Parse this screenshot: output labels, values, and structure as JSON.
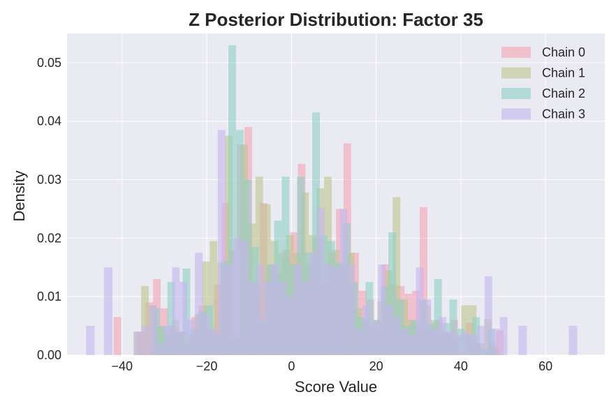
{
  "chart_data": {
    "type": "histogram",
    "title": "Z Posterior Distribution: Factor 35",
    "xlabel": "Score Value",
    "ylabel": "Density",
    "xlim": [
      -53,
      74
    ],
    "ylim": [
      0,
      0.055
    ],
    "x_ticks": [
      -40,
      -20,
      0,
      20,
      40,
      60
    ],
    "x_tick_labels": [
      "−40",
      "−20",
      "0",
      "20",
      "40",
      "60"
    ],
    "y_ticks": [
      0.0,
      0.01,
      0.02,
      0.03,
      0.04,
      0.05
    ],
    "y_tick_labels": [
      "0.00",
      "0.01",
      "0.02",
      "0.03",
      "0.04",
      "0.05"
    ],
    "grid": true,
    "legend_position": "top-right",
    "series": [
      {
        "name": "Chain 0",
        "color": "#f4a3b4",
        "bins": [
          {
            "x0": -42,
            "x1": -40.2,
            "y": 0.0065
          },
          {
            "x0": -36.5,
            "x1": -34.5,
            "y": 0.004
          },
          {
            "x0": -34.5,
            "x1": -32.7,
            "y": 0.009
          },
          {
            "x0": -32.7,
            "x1": -30.9,
            "y": 0.013
          },
          {
            "x0": -30.9,
            "x1": -29.1,
            "y": 0.008
          },
          {
            "x0": -29.1,
            "x1": -27.3,
            "y": 0.005
          },
          {
            "x0": -27.3,
            "x1": -25.5,
            "y": 0.004
          },
          {
            "x0": -25.5,
            "x1": -23.7,
            "y": 0.002
          },
          {
            "x0": -23.7,
            "x1": -21.9,
            "y": 0.0065
          },
          {
            "x0": -21.9,
            "x1": -20.1,
            "y": 0.0085
          },
          {
            "x0": -20.1,
            "x1": -18.3,
            "y": 0.0045
          },
          {
            "x0": -18.3,
            "x1": -16.5,
            "y": 0.012
          },
          {
            "x0": -16.5,
            "x1": -14.7,
            "y": 0.026
          },
          {
            "x0": -14.7,
            "x1": -12.9,
            "y": 0.018
          },
          {
            "x0": -12.9,
            "x1": -11.1,
            "y": 0.036
          },
          {
            "x0": -11.1,
            "x1": -9.3,
            "y": 0.039
          },
          {
            "x0": -9.3,
            "x1": -7.5,
            "y": 0.0125
          },
          {
            "x0": -7.5,
            "x1": -5.7,
            "y": 0.026
          },
          {
            "x0": -5.7,
            "x1": -3.9,
            "y": 0.0155
          },
          {
            "x0": -3.9,
            "x1": -2.1,
            "y": 0.014
          },
          {
            "x0": -2.1,
            "x1": -0.3,
            "y": 0.018
          },
          {
            "x0": -0.3,
            "x1": 1.5,
            "y": 0.021
          },
          {
            "x0": 1.5,
            "x1": 3.3,
            "y": 0.0327
          },
          {
            "x0": 3.3,
            "x1": 5.1,
            "y": 0.0155
          },
          {
            "x0": 5.1,
            "x1": 6.9,
            "y": 0.02
          },
          {
            "x0": 6.9,
            "x1": 8.7,
            "y": 0.0125
          },
          {
            "x0": 8.7,
            "x1": 10.5,
            "y": 0.0175
          },
          {
            "x0": 10.5,
            "x1": 12.3,
            "y": 0.025
          },
          {
            "x0": 12.3,
            "x1": 14.1,
            "y": 0.0362
          },
          {
            "x0": 14.1,
            "x1": 15.9,
            "y": 0.0175
          },
          {
            "x0": 15.9,
            "x1": 17.7,
            "y": 0.011
          },
          {
            "x0": 17.7,
            "x1": 19.5,
            "y": 0.0095
          },
          {
            "x0": 19.5,
            "x1": 21.3,
            "y": 0.006
          },
          {
            "x0": 21.3,
            "x1": 23.1,
            "y": 0.0155
          },
          {
            "x0": 23.1,
            "x1": 24.9,
            "y": 0.012
          },
          {
            "x0": 24.9,
            "x1": 26.7,
            "y": 0.0118
          },
          {
            "x0": 26.7,
            "x1": 28.5,
            "y": 0.0105
          },
          {
            "x0": 28.5,
            "x1": 30.3,
            "y": 0.011
          },
          {
            "x0": 30.3,
            "x1": 32.1,
            "y": 0.0253
          },
          {
            "x0": 32.1,
            "x1": 33.9,
            "y": 0.005
          },
          {
            "x0": 33.9,
            "x1": 35.7,
            "y": 0.006
          },
          {
            "x0": 35.7,
            "x1": 37.5,
            "y": 0.004
          },
          {
            "x0": 37.5,
            "x1": 39.3,
            "y": 0.006
          },
          {
            "x0": 41.1,
            "x1": 42.9,
            "y": 0.0055
          },
          {
            "x0": 42.9,
            "x1": 44.7,
            "y": 0.002
          },
          {
            "x0": 46.5,
            "x1": 48.3,
            "y": 0.002
          },
          {
            "x0": 48.3,
            "x1": 50.1,
            "y": 0.0042
          }
        ]
      },
      {
        "name": "Chain 1",
        "color": "#bcc48e",
        "bins": [
          {
            "x0": -37.3,
            "x1": -35.5,
            "y": 0.004
          },
          {
            "x0": -35.5,
            "x1": -33.7,
            "y": 0.0118
          },
          {
            "x0": -33.7,
            "x1": -31.9,
            "y": 0.0085
          },
          {
            "x0": -31.9,
            "x1": -30.1,
            "y": 0.0048
          },
          {
            "x0": -30.1,
            "x1": -28.3,
            "y": 0.0035
          },
          {
            "x0": -28.3,
            "x1": -26.5,
            "y": 0.006
          },
          {
            "x0": -26.5,
            "x1": -24.7,
            "y": 0.004
          },
          {
            "x0": -24.7,
            "x1": -22.9,
            "y": 0.0035
          },
          {
            "x0": -22.9,
            "x1": -21.1,
            "y": 0.007
          },
          {
            "x0": -21.1,
            "x1": -19.3,
            "y": 0.016
          },
          {
            "x0": -19.3,
            "x1": -17.5,
            "y": 0.0195
          },
          {
            "x0": -17.5,
            "x1": -15.7,
            "y": 0.0158
          },
          {
            "x0": -15.7,
            "x1": -13.9,
            "y": 0.0375
          },
          {
            "x0": -13.9,
            "x1": -12.1,
            "y": 0.0028
          },
          {
            "x0": -12.1,
            "x1": -10.3,
            "y": 0.036
          },
          {
            "x0": -10.3,
            "x1": -8.5,
            "y": 0.0225
          },
          {
            "x0": -8.5,
            "x1": -6.7,
            "y": 0.0305
          },
          {
            "x0": -6.7,
            "x1": -4.9,
            "y": 0.0258
          },
          {
            "x0": -4.9,
            "x1": -3.1,
            "y": 0.0195
          },
          {
            "x0": -3.1,
            "x1": -1.3,
            "y": 0.0175
          },
          {
            "x0": -1.3,
            "x1": 0.5,
            "y": 0.0205
          },
          {
            "x0": 0.5,
            "x1": 2.3,
            "y": 0.0175
          },
          {
            "x0": 2.3,
            "x1": 4.1,
            "y": 0.0278
          },
          {
            "x0": 4.1,
            "x1": 5.9,
            "y": 0.0205
          },
          {
            "x0": 5.9,
            "x1": 7.7,
            "y": 0.0285
          },
          {
            "x0": 7.7,
            "x1": 9.5,
            "y": 0.0305
          },
          {
            "x0": 9.5,
            "x1": 11.3,
            "y": 0.018
          },
          {
            "x0": 11.3,
            "x1": 13.1,
            "y": 0.0155
          },
          {
            "x0": 13.1,
            "x1": 14.9,
            "y": 0.0175
          },
          {
            "x0": 14.9,
            "x1": 16.7,
            "y": 0.008
          },
          {
            "x0": 16.7,
            "x1": 18.5,
            "y": 0.006
          },
          {
            "x0": 18.5,
            "x1": 20.3,
            "y": 0.005
          },
          {
            "x0": 20.3,
            "x1": 22.1,
            "y": 0.0092
          },
          {
            "x0": 22.1,
            "x1": 23.9,
            "y": 0.0145
          },
          {
            "x0": 23.9,
            "x1": 25.7,
            "y": 0.027
          },
          {
            "x0": 25.7,
            "x1": 27.5,
            "y": 0.0095
          },
          {
            "x0": 27.5,
            "x1": 29.3,
            "y": 0.006
          },
          {
            "x0": 29.3,
            "x1": 31.1,
            "y": 0.005
          },
          {
            "x0": 31.1,
            "x1": 32.9,
            "y": 0.0085
          },
          {
            "x0": 32.9,
            "x1": 34.7,
            "y": 0.006
          },
          {
            "x0": 34.7,
            "x1": 36.5,
            "y": 0.004
          },
          {
            "x0": 36.5,
            "x1": 38.3,
            "y": 0.0035
          },
          {
            "x0": 38.3,
            "x1": 40.1,
            "y": 0.003
          },
          {
            "x0": 40.1,
            "x1": 41.9,
            "y": 0.0085
          },
          {
            "x0": 41.9,
            "x1": 43.7,
            "y": 0.0085
          },
          {
            "x0": 43.7,
            "x1": 45.5,
            "y": 0.002
          },
          {
            "x0": 45.5,
            "x1": 47.3,
            "y": 0.0062
          },
          {
            "x0": 47.3,
            "x1": 49.1,
            "y": 0.0012
          }
        ]
      },
      {
        "name": "Chain 2",
        "color": "#8fcfc7",
        "bins": [
          {
            "x0": -32.9,
            "x1": -31.1,
            "y": 0.008
          },
          {
            "x0": -31.1,
            "x1": -29.3,
            "y": 0.005
          },
          {
            "x0": -29.3,
            "x1": -27.5,
            "y": 0.0125
          },
          {
            "x0": -27.5,
            "x1": -25.7,
            "y": 0.004
          },
          {
            "x0": -25.7,
            "x1": -23.9,
            "y": 0.0148
          },
          {
            "x0": -23.9,
            "x1": -22.1,
            "y": 0.0045
          },
          {
            "x0": -22.1,
            "x1": -20.3,
            "y": 0.0075
          },
          {
            "x0": -20.3,
            "x1": -18.5,
            "y": 0.0085
          },
          {
            "x0": -18.5,
            "x1": -16.7,
            "y": 0.0035
          },
          {
            "x0": -16.7,
            "x1": -14.9,
            "y": 0.016
          },
          {
            "x0": -14.9,
            "x1": -13.1,
            "y": 0.053
          },
          {
            "x0": -13.1,
            "x1": -11.3,
            "y": 0.0385
          },
          {
            "x0": -11.3,
            "x1": -9.5,
            "y": 0.03
          },
          {
            "x0": -9.5,
            "x1": -7.7,
            "y": 0.0185
          },
          {
            "x0": -7.7,
            "x1": -5.9,
            "y": 0.006
          },
          {
            "x0": -5.9,
            "x1": -4.1,
            "y": 0.0155
          },
          {
            "x0": -4.1,
            "x1": -2.3,
            "y": 0.023
          },
          {
            "x0": -2.3,
            "x1": -0.5,
            "y": 0.0305
          },
          {
            "x0": -0.5,
            "x1": 1.3,
            "y": 0.0155
          },
          {
            "x0": 1.3,
            "x1": 3.1,
            "y": 0.0305
          },
          {
            "x0": 3.1,
            "x1": 4.9,
            "y": 0.0175
          },
          {
            "x0": 4.9,
            "x1": 6.7,
            "y": 0.0415
          },
          {
            "x0": 6.7,
            "x1": 8.5,
            "y": 0.0205
          },
          {
            "x0": 8.5,
            "x1": 10.3,
            "y": 0.0195
          },
          {
            "x0": 10.3,
            "x1": 12.1,
            "y": 0.0158
          },
          {
            "x0": 12.1,
            "x1": 13.9,
            "y": 0.0225
          },
          {
            "x0": 13.9,
            "x1": 15.7,
            "y": 0.0125
          },
          {
            "x0": 15.7,
            "x1": 17.5,
            "y": 0.0065
          },
          {
            "x0": 17.5,
            "x1": 19.3,
            "y": 0.0125
          },
          {
            "x0": 19.3,
            "x1": 21.1,
            "y": 0.006
          },
          {
            "x0": 21.1,
            "x1": 22.9,
            "y": 0.0118
          },
          {
            "x0": 22.9,
            "x1": 24.7,
            "y": 0.021
          },
          {
            "x0": 24.7,
            "x1": 26.5,
            "y": 0.0095
          },
          {
            "x0": 26.5,
            "x1": 28.3,
            "y": 0.005
          },
          {
            "x0": 28.3,
            "x1": 30.1,
            "y": 0.006
          },
          {
            "x0": 30.1,
            "x1": 31.9,
            "y": 0.0095
          },
          {
            "x0": 31.9,
            "x1": 33.7,
            "y": 0.0055
          },
          {
            "x0": 33.7,
            "x1": 35.5,
            "y": 0.013
          },
          {
            "x0": 35.5,
            "x1": 37.3,
            "y": 0.0055
          },
          {
            "x0": 37.3,
            "x1": 39.1,
            "y": 0.0095
          },
          {
            "x0": 39.1,
            "x1": 40.9,
            "y": 0.0045
          },
          {
            "x0": 40.9,
            "x1": 42.7,
            "y": 0.0035
          },
          {
            "x0": 42.7,
            "x1": 44.5,
            "y": 0.0065
          },
          {
            "x0": 44.5,
            "x1": 46.3,
            "y": 0.001
          },
          {
            "x0": 46.3,
            "x1": 48.1,
            "y": 0.0045
          }
        ]
      },
      {
        "name": "Chain 3",
        "color": "#c4b5f0",
        "bins": [
          {
            "x0": -48.5,
            "x1": -46.5,
            "y": 0.005
          },
          {
            "x0": -44.3,
            "x1": -42.3,
            "y": 0.015
          },
          {
            "x0": -37.2,
            "x1": -35.4,
            "y": 0.004
          },
          {
            "x0": -35.4,
            "x1": -33.6,
            "y": 0.005
          },
          {
            "x0": -33.6,
            "x1": -31.8,
            "y": 0.0085
          },
          {
            "x0": -31.8,
            "x1": -30.0,
            "y": 0.002
          },
          {
            "x0": -30.0,
            "x1": -28.2,
            "y": 0.005
          },
          {
            "x0": -28.2,
            "x1": -26.4,
            "y": 0.015
          },
          {
            "x0": -26.4,
            "x1": -24.6,
            "y": 0.0125
          },
          {
            "x0": -24.6,
            "x1": -22.8,
            "y": 0.006
          },
          {
            "x0": -22.8,
            "x1": -21.0,
            "y": 0.0175
          },
          {
            "x0": -21.0,
            "x1": -19.2,
            "y": 0.007
          },
          {
            "x0": -19.2,
            "x1": -17.4,
            "y": 0.0045
          },
          {
            "x0": -17.4,
            "x1": -15.6,
            "y": 0.0385
          },
          {
            "x0": -15.6,
            "x1": -13.8,
            "y": 0.0155
          },
          {
            "x0": -13.8,
            "x1": -12.0,
            "y": 0.02
          },
          {
            "x0": -12.0,
            "x1": -10.2,
            "y": 0.0195
          },
          {
            "x0": -10.2,
            "x1": -8.4,
            "y": 0.0125
          },
          {
            "x0": -8.4,
            "x1": -6.6,
            "y": 0.0155
          },
          {
            "x0": -6.6,
            "x1": -4.8,
            "y": 0.0125
          },
          {
            "x0": -4.8,
            "x1": -3.0,
            "y": 0.0155
          },
          {
            "x0": -3.0,
            "x1": -1.2,
            "y": 0.0125
          },
          {
            "x0": -1.2,
            "x1": 0.6,
            "y": 0.01
          },
          {
            "x0": 0.6,
            "x1": 2.4,
            "y": 0.0155
          },
          {
            "x0": 2.4,
            "x1": 4.2,
            "y": 0.0125
          },
          {
            "x0": 4.2,
            "x1": 6.0,
            "y": 0.0175
          },
          {
            "x0": 6.0,
            "x1": 7.8,
            "y": 0.0252
          },
          {
            "x0": 7.8,
            "x1": 9.6,
            "y": 0.0155
          },
          {
            "x0": 9.6,
            "x1": 11.4,
            "y": 0.015
          },
          {
            "x0": 11.4,
            "x1": 13.2,
            "y": 0.025
          },
          {
            "x0": 13.2,
            "x1": 15.0,
            "y": 0.0155
          },
          {
            "x0": 15.0,
            "x1": 16.8,
            "y": 0.0045
          },
          {
            "x0": 16.8,
            "x1": 18.6,
            "y": 0.0085
          },
          {
            "x0": 18.6,
            "x1": 20.4,
            "y": 0.0055
          },
          {
            "x0": 20.4,
            "x1": 22.2,
            "y": 0.0155
          },
          {
            "x0": 22.2,
            "x1": 24.0,
            "y": 0.0085
          },
          {
            "x0": 24.0,
            "x1": 25.8,
            "y": 0.0065
          },
          {
            "x0": 25.8,
            "x1": 27.6,
            "y": 0.0045
          },
          {
            "x0": 27.6,
            "x1": 29.4,
            "y": 0.0035
          },
          {
            "x0": 29.4,
            "x1": 31.2,
            "y": 0.015
          },
          {
            "x0": 31.2,
            "x1": 33.0,
            "y": 0.0095
          },
          {
            "x0": 33.0,
            "x1": 34.8,
            "y": 0.0045
          },
          {
            "x0": 34.8,
            "x1": 36.6,
            "y": 0.0065
          },
          {
            "x0": 36.6,
            "x1": 38.4,
            "y": 0.004
          },
          {
            "x0": 38.4,
            "x1": 40.2,
            "y": 0.0035
          },
          {
            "x0": 40.2,
            "x1": 42.0,
            "y": 0.004
          },
          {
            "x0": 42.0,
            "x1": 43.8,
            "y": 0.0035
          },
          {
            "x0": 43.8,
            "x1": 45.6,
            "y": 0.005
          },
          {
            "x0": 45.6,
            "x1": 47.4,
            "y": 0.0135
          },
          {
            "x0": 47.4,
            "x1": 49.2,
            "y": 0.0045
          },
          {
            "x0": 49.2,
            "x1": 51.0,
            "y": 0.0065
          },
          {
            "x0": 53.6,
            "x1": 55.6,
            "y": 0.005
          },
          {
            "x0": 65.5,
            "x1": 67.5,
            "y": 0.005
          }
        ]
      }
    ]
  }
}
